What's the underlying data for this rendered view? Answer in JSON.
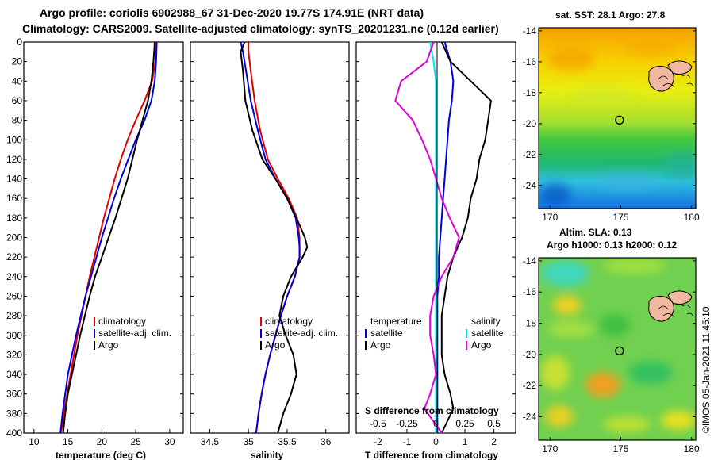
{
  "header": {
    "title_line1": "Argo profile: coriolis 6902988_67 31-Dec-2020 19.77S 174.91E (NRT data)",
    "title_line2": "Climatology: CARS2009. Satellite-adjusted climatology: synTS_20201231.nc (0.12d earlier)"
  },
  "colors": {
    "climatology": "#e00000",
    "satellite": "#0000dd",
    "argo": "#000000",
    "satellite_salinity": "#00e5ee",
    "argo_salinity": "#e000e0"
  },
  "depth_axis": {
    "label": "",
    "range": [
      0,
      400
    ],
    "ticks": [
      "0",
      "20",
      "40",
      "60",
      "80",
      "100",
      "120",
      "140",
      "160",
      "180",
      "200",
      "220",
      "240",
      "260",
      "280",
      "300",
      "320",
      "340",
      "360",
      "380",
      "400"
    ]
  },
  "chart_data": [
    {
      "id": "temperature",
      "type": "line",
      "xlabel": "temperature (deg C)",
      "xlim": [
        8.5,
        32
      ],
      "xticks": [
        "10",
        "15",
        "20",
        "25",
        "30"
      ],
      "ylim": [
        0,
        400
      ],
      "legend": [
        "climatology",
        "satellite-adj. clim.",
        "Argo"
      ],
      "series": [
        {
          "name": "climatology",
          "color": "climatology",
          "x": [
            28.0,
            27.9,
            27.4,
            26.3,
            25.0,
            23.8,
            22.8,
            21.9,
            21.1,
            20.3,
            19.6,
            18.9,
            18.2,
            17.6,
            17.0,
            16.4,
            15.9,
            15.4,
            14.9,
            14.4,
            14.0
          ],
          "y": [
            0,
            20,
            40,
            60,
            80,
            100,
            120,
            140,
            160,
            180,
            200,
            220,
            240,
            260,
            280,
            300,
            320,
            340,
            360,
            380,
            400
          ]
        },
        {
          "name": "satellite-adj. clim.",
          "color": "satellite",
          "x": [
            28.1,
            28.0,
            27.8,
            27.3,
            26.3,
            25.0,
            23.9,
            22.8,
            21.8,
            20.9,
            20.0,
            19.2,
            18.4,
            17.6,
            16.9,
            16.2,
            15.6,
            15.0,
            14.6,
            14.2,
            13.9
          ],
          "y": [
            0,
            20,
            40,
            60,
            80,
            100,
            120,
            140,
            160,
            180,
            200,
            220,
            240,
            260,
            280,
            300,
            320,
            340,
            360,
            380,
            400
          ]
        },
        {
          "name": "Argo",
          "color": "argo",
          "x": [
            27.8,
            27.6,
            27.3,
            26.8,
            26.0,
            25.2,
            24.5,
            23.8,
            22.9,
            22.0,
            21.0,
            20.0,
            19.0,
            18.2,
            17.5,
            16.8,
            16.2,
            15.6,
            15.0,
            14.6,
            14.3
          ],
          "y": [
            0,
            20,
            40,
            60,
            80,
            100,
            120,
            140,
            160,
            180,
            200,
            220,
            240,
            260,
            280,
            300,
            320,
            340,
            360,
            380,
            400
          ]
        }
      ]
    },
    {
      "id": "salinity",
      "type": "line",
      "xlabel": "salinity",
      "xlim": [
        34.25,
        36.3
      ],
      "xticks": [
        "34.5",
        "35",
        "35.5",
        "36"
      ],
      "ylim": [
        0,
        400
      ],
      "legend": [
        "climatology",
        "satellite-adj. clim.",
        "Argo"
      ],
      "series": [
        {
          "name": "climatology",
          "color": "climatology",
          "x": [
            35.0,
            35.0,
            35.03,
            35.08,
            35.15,
            35.25,
            35.38,
            35.52,
            35.63,
            35.66,
            35.66,
            35.66,
            35.6,
            35.5,
            35.42,
            35.35,
            35.28,
            35.22,
            35.17,
            35.13,
            35.1
          ],
          "y": [
            0,
            10,
            30,
            60,
            90,
            120,
            140,
            160,
            180,
            200,
            210,
            220,
            240,
            260,
            280,
            300,
            320,
            340,
            360,
            380,
            400
          ]
        },
        {
          "name": "satellite-adj. clim.",
          "color": "satellite",
          "x": [
            34.9,
            34.93,
            34.97,
            35.03,
            35.12,
            35.22,
            35.35,
            35.5,
            35.61,
            35.65,
            35.66,
            35.66,
            35.6,
            35.5,
            35.42,
            35.35,
            35.28,
            35.22,
            35.17,
            35.13,
            35.1
          ],
          "y": [
            0,
            10,
            30,
            60,
            90,
            120,
            140,
            160,
            180,
            200,
            210,
            220,
            240,
            260,
            280,
            300,
            320,
            340,
            360,
            380,
            400
          ]
        },
        {
          "name": "Argo",
          "color": "argo",
          "x": [
            34.95,
            34.9,
            34.93,
            34.96,
            35.05,
            35.18,
            35.35,
            35.5,
            35.62,
            35.73,
            35.76,
            35.7,
            35.55,
            35.45,
            35.4,
            35.48,
            35.58,
            35.62,
            35.55,
            35.45,
            35.38
          ],
          "y": [
            0,
            10,
            30,
            60,
            90,
            120,
            140,
            160,
            180,
            200,
            210,
            220,
            240,
            260,
            280,
            300,
            320,
            340,
            360,
            380,
            400
          ]
        }
      ]
    },
    {
      "id": "difference",
      "type": "line",
      "xlabel": "T difference from climatology",
      "x2label": "S difference from climatology",
      "xlim": [
        -2.75,
        2.75
      ],
      "xticks": [
        "-2",
        "-1",
        "0",
        "1",
        "2"
      ],
      "x2lim": [
        -0.6875,
        0.6875
      ],
      "x2ticks": [
        "-0.5",
        "-0.25",
        "0",
        "0.25",
        "0.5"
      ],
      "ylim": [
        0,
        400
      ],
      "legend_temperature_title": "temperature",
      "legend_salinity_title": "salinity",
      "legend_temperature": [
        "satellite",
        "Argo"
      ],
      "legend_salinity": [
        "satellite",
        "Argo"
      ],
      "series": [
        {
          "name": "T satellite",
          "color": "satellite",
          "axis": "T",
          "x": [
            0.3,
            0.5,
            0.6,
            0.55,
            0.45,
            0.4,
            0.35,
            0.3,
            0.25,
            0.2,
            0.15,
            0.1,
            0.1,
            0.05,
            0.05,
            0.05,
            0.05,
            0.05,
            0.05,
            0.05
          ],
          "y": [
            0,
            20,
            40,
            60,
            80,
            100,
            120,
            140,
            160,
            180,
            200,
            220,
            240,
            260,
            280,
            300,
            320,
            340,
            360,
            400
          ]
        },
        {
          "name": "T Argo",
          "color": "argo",
          "axis": "T",
          "x": [
            0.2,
            0.5,
            1.2,
            1.9,
            1.8,
            1.7,
            1.5,
            1.4,
            1.2,
            1.1,
            0.9,
            0.6,
            0.4,
            0.3,
            0.2,
            0.2,
            0.2,
            0.3,
            0.5,
            0.6,
            0.2
          ],
          "y": [
            0,
            20,
            40,
            60,
            80,
            100,
            120,
            140,
            160,
            180,
            200,
            220,
            240,
            260,
            280,
            300,
            320,
            340,
            360,
            375,
            400
          ]
        },
        {
          "name": "S satellite",
          "color": "satellite_salinity",
          "axis": "S",
          "x": [
            -0.05,
            -0.02,
            0.0,
            0.0,
            0.0,
            0.0,
            0.0,
            0.0,
            0.0,
            0.0,
            0.0,
            0.0,
            0.0,
            0.0,
            0.0,
            0.0,
            0.0,
            0.0,
            0.0,
            0.0
          ],
          "y": [
            0,
            20,
            40,
            60,
            80,
            100,
            120,
            140,
            160,
            180,
            200,
            220,
            240,
            260,
            280,
            300,
            320,
            340,
            360,
            400
          ]
        },
        {
          "name": "S Argo",
          "color": "argo_salinity",
          "axis": "S",
          "x": [
            -0.02,
            -0.08,
            -0.3,
            -0.35,
            -0.2,
            -0.12,
            -0.05,
            0.0,
            0.05,
            0.12,
            0.2,
            0.15,
            0.05,
            -0.02,
            -0.05,
            -0.05,
            -0.02,
            0.0,
            -0.05,
            -0.1,
            0.05
          ],
          "y": [
            0,
            20,
            40,
            60,
            80,
            100,
            120,
            140,
            160,
            180,
            200,
            220,
            240,
            260,
            280,
            300,
            320,
            340,
            360,
            375,
            400
          ]
        }
      ]
    }
  ],
  "maps": [
    {
      "id": "sst",
      "title": "sat. SST: 28.1  Argo: 27.8",
      "xticks": [
        "170",
        "175",
        "180"
      ],
      "yticks": [
        "-14",
        "-16",
        "-18",
        "-20",
        "-22",
        "-24"
      ],
      "lon_range": [
        169.2,
        180.3
      ],
      "lat_range": [
        -25.5,
        -13.8
      ],
      "argo_lon": 174.91,
      "argo_lat": -19.77
    },
    {
      "id": "sla",
      "title": "Altim. SLA: 0.13",
      "subtitle": "Argo h1000: 0.13 h2000: 0.12",
      "xticks": [
        "170",
        "175",
        "180"
      ],
      "yticks": [
        "-14",
        "-16",
        "-18",
        "-20",
        "-22",
        "-24"
      ],
      "lon_range": [
        169.2,
        180.3
      ],
      "lat_range": [
        -25.5,
        -13.8
      ],
      "argo_lon": 174.91,
      "argo_lat": -19.77
    }
  ],
  "watermark": "©IMOS 05-Jan-2021 11:45:10"
}
